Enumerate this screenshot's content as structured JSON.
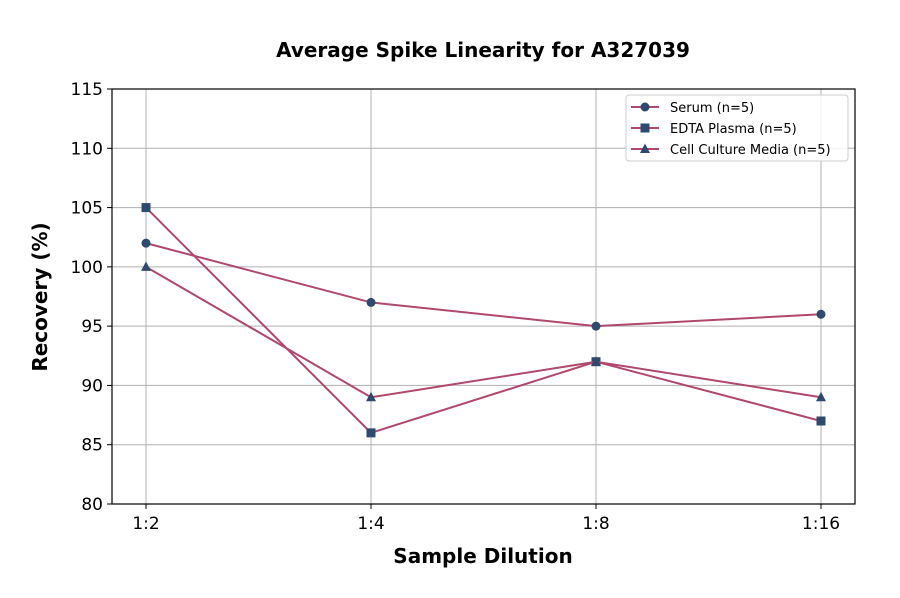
{
  "chart_data": {
    "type": "line",
    "title": "Average Spike Linearity for A327039",
    "xlabel": "Sample Dilution",
    "ylabel": "Recovery (%)",
    "categories": [
      "1:2",
      "1:4",
      "1:8",
      "1:16"
    ],
    "ylim": [
      80,
      115
    ],
    "yticks": [
      80,
      85,
      90,
      95,
      100,
      105,
      110,
      115
    ],
    "grid": true,
    "legend_position": "top-right",
    "line_color": "#b0486e",
    "marker_color": "#2e4a6e",
    "series": [
      {
        "name": "Serum (n=5)",
        "marker": "circle",
        "values": [
          102,
          97,
          95,
          96
        ]
      },
      {
        "name": "EDTA Plasma (n=5)",
        "marker": "square",
        "values": [
          105,
          86,
          92,
          87
        ]
      },
      {
        "name": "Cell Culture Media (n=5)",
        "marker": "triangle",
        "values": [
          100,
          89,
          92,
          89
        ]
      }
    ]
  }
}
